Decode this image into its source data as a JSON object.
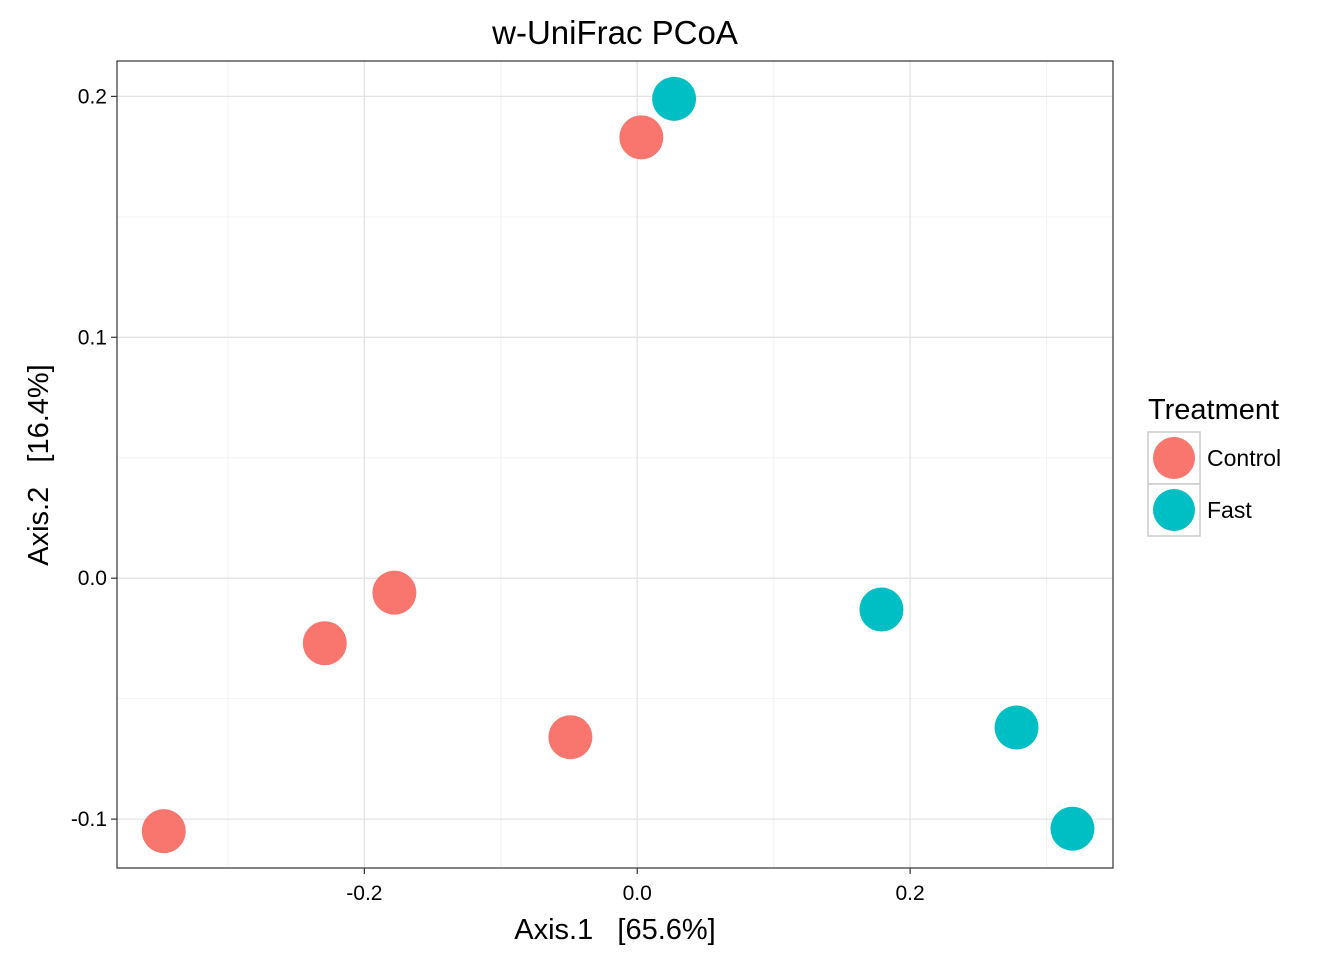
{
  "chart_data": {
    "type": "scatter",
    "title": "w-UniFrac PCoA",
    "xlabel": "Axis.1   [65.6%]",
    "ylabel": "Axis.2   [16.4%]",
    "xlim": [
      -0.3813,
      0.3487
    ],
    "ylim": [
      -0.1203,
      0.2147
    ],
    "x_ticks": [
      -0.2,
      0.0,
      0.2
    ],
    "x_tick_labels": [
      "-0.2",
      "0.0",
      "0.2"
    ],
    "y_ticks": [
      -0.1,
      0.0,
      0.1,
      0.2
    ],
    "y_tick_labels": [
      "-0.1",
      "0.0",
      "0.1",
      "0.2"
    ],
    "grid": true,
    "legend": {
      "title": "Treatment",
      "placement": "right"
    },
    "series": [
      {
        "name": "Control",
        "color": "#F8766D",
        "points": [
          {
            "x": -0.347,
            "y": -0.105
          },
          {
            "x": -0.229,
            "y": -0.027
          },
          {
            "x": -0.178,
            "y": -0.006
          },
          {
            "x": -0.049,
            "y": -0.066
          },
          {
            "x": 0.003,
            "y": 0.183
          }
        ]
      },
      {
        "name": "Fast",
        "color": "#00BFC4",
        "points": [
          {
            "x": 0.027,
            "y": 0.199
          },
          {
            "x": 0.179,
            "y": -0.013
          },
          {
            "x": 0.278,
            "y": -0.062
          },
          {
            "x": 0.319,
            "y": -0.104
          }
        ]
      }
    ]
  }
}
